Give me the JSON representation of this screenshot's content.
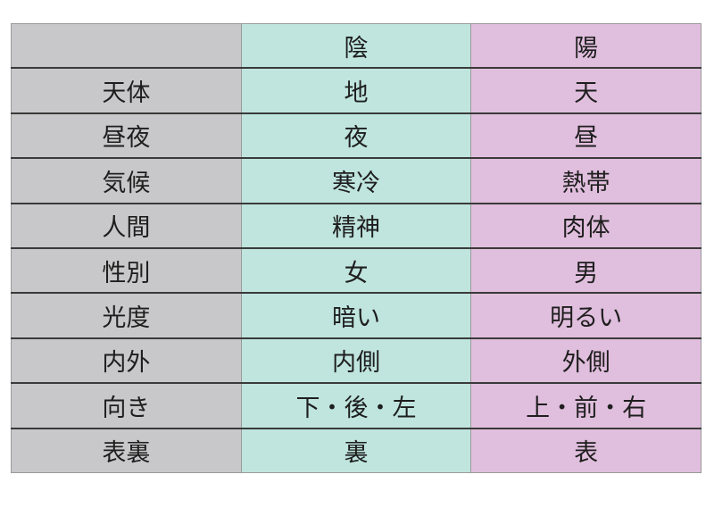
{
  "colors": {
    "label_column": "#c8c8ca",
    "yin_column": "#bfe5de",
    "yang_column": "#e0bedd"
  },
  "header": {
    "blank": "",
    "yin": "陰",
    "yang": "陽"
  },
  "rows": [
    {
      "label": "天体",
      "yin": "地",
      "yang": "天"
    },
    {
      "label": "昼夜",
      "yin": "夜",
      "yang": "昼"
    },
    {
      "label": "気候",
      "yin": "寒冷",
      "yang": "熱帯"
    },
    {
      "label": "人間",
      "yin": "精神",
      "yang": "肉体"
    },
    {
      "label": "性別",
      "yin": "女",
      "yang": "男"
    },
    {
      "label": "光度",
      "yin": "暗い",
      "yang": "明るい"
    },
    {
      "label": "内外",
      "yin": "内側",
      "yang": "外側"
    },
    {
      "label": "向き",
      "yin": "下・後・左",
      "yang": "上・前・右"
    },
    {
      "label": "表裏",
      "yin": "裏",
      "yang": "表"
    }
  ]
}
